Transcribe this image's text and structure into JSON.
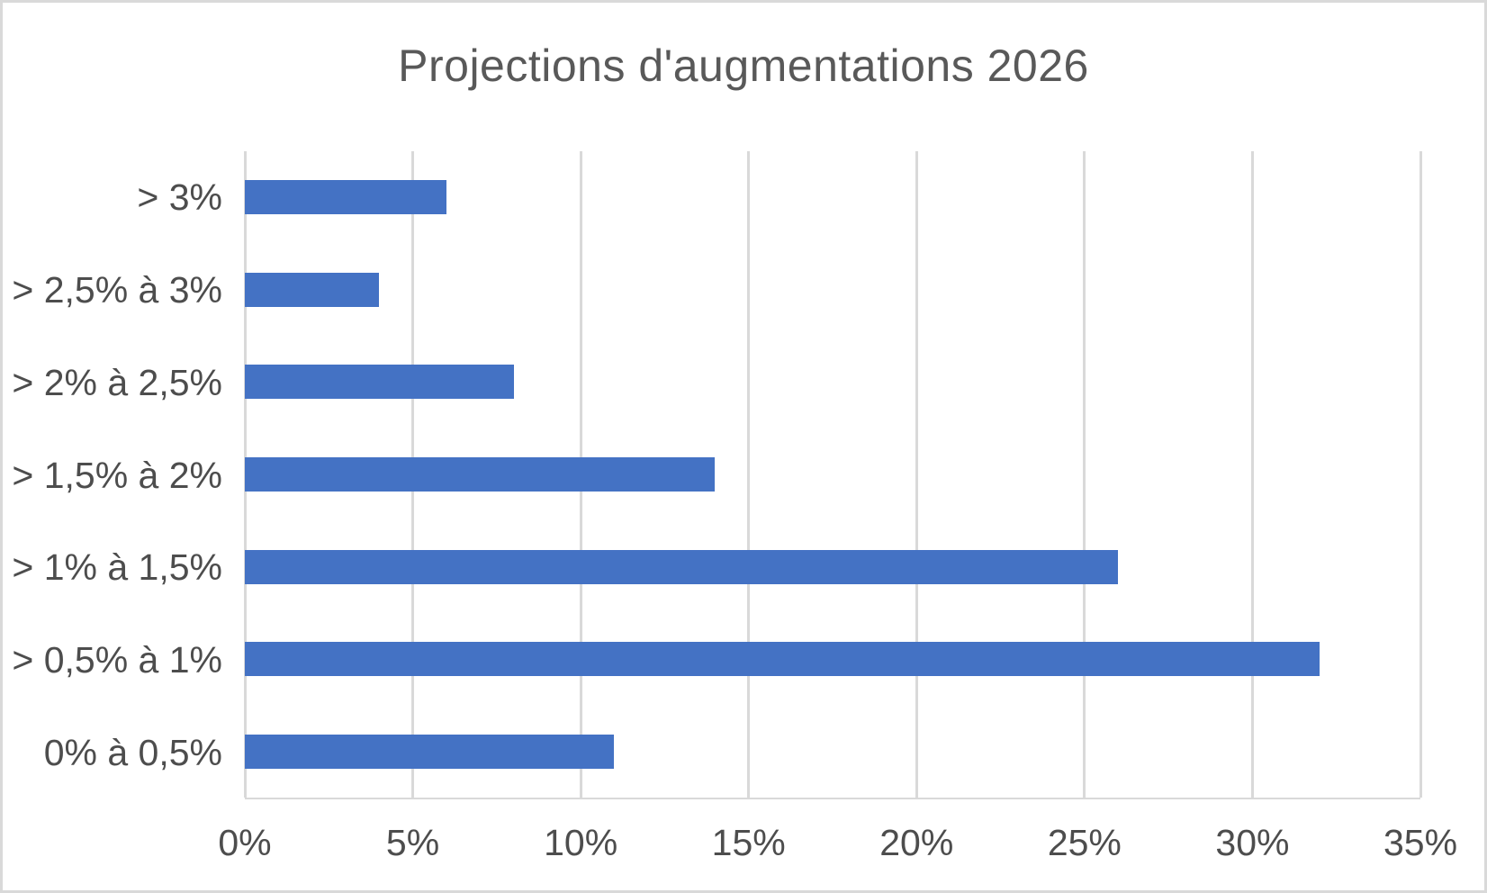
{
  "page": {
    "background_color": "#FFFFFF",
    "border_color": "#D9D9D9"
  },
  "chart_data": {
    "type": "bar",
    "orientation": "horizontal",
    "title": "Projections d'augmentations 2026",
    "categories": [
      "> 3%",
      "> 2,5% à 3%",
      "> 2% à 2,5%",
      "> 1,5% à 2%",
      "> 1% à 1,5%",
      "> 0,5% à 1%",
      "0% à 0,5%"
    ],
    "values": [
      6,
      4,
      8,
      14,
      26,
      32,
      11
    ],
    "value_unit": "%",
    "xlabel": "",
    "ylabel": "",
    "x_axis": {
      "min": 0,
      "max": 35,
      "tick_values": [
        0,
        5,
        10,
        15,
        20,
        25,
        30,
        35
      ],
      "tick_labels": [
        "0%",
        "5%",
        "10%",
        "15%",
        "20%",
        "25%",
        "30%",
        "35%"
      ]
    },
    "grid": "vertical-only",
    "legend": "none",
    "colors": {
      "bar": "#4472C4",
      "gridline": "#D9D9D9",
      "title": "#595959",
      "axis_labels": "#4D4D4D"
    }
  }
}
